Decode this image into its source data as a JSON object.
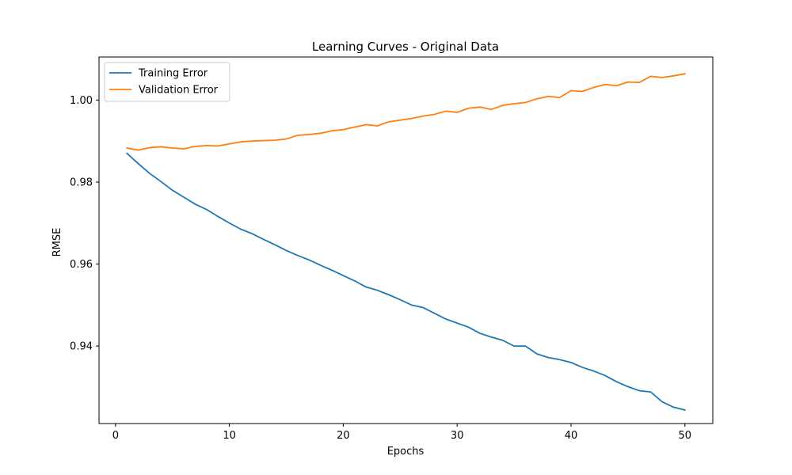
{
  "chart_data": {
    "type": "line",
    "title": "Learning Curves - Original Data",
    "xlabel": "Epochs",
    "ylabel": "RMSE",
    "xlim": [
      -1.45,
      52.45
    ],
    "ylim": [
      0.9211,
      1.0105
    ],
    "xticks": [
      0,
      10,
      20,
      30,
      40,
      50
    ],
    "yticks": [
      0.94,
      0.96,
      0.98,
      1.0
    ],
    "xtick_labels": [
      "0",
      "10",
      "20",
      "30",
      "40",
      "50"
    ],
    "ytick_labels": [
      "0.94",
      "0.96",
      "0.98",
      "1.00"
    ],
    "grid": false,
    "legend_position": "top-left",
    "x": [
      1,
      2,
      3,
      4,
      5,
      6,
      7,
      8,
      9,
      10,
      11,
      12,
      13,
      14,
      15,
      16,
      17,
      18,
      19,
      20,
      21,
      22,
      23,
      24,
      25,
      26,
      27,
      28,
      29,
      30,
      31,
      32,
      33,
      34,
      35,
      36,
      37,
      38,
      39,
      40,
      41,
      42,
      43,
      44,
      45,
      46,
      47,
      48,
      49,
      50
    ],
    "series": [
      {
        "name": "Training Error",
        "color": "#1f77b4",
        "values": [
          0.987,
          0.9845,
          0.9821,
          0.9801,
          0.978,
          0.9763,
          0.9746,
          0.9733,
          0.9716,
          0.97,
          0.9685,
          0.9674,
          0.966,
          0.9647,
          0.9633,
          0.9621,
          0.961,
          0.9597,
          0.9585,
          0.9572,
          0.9559,
          0.9544,
          0.9536,
          0.9525,
          0.9513,
          0.95,
          0.9494,
          0.948,
          0.9466,
          0.9456,
          0.9446,
          0.9431,
          0.9422,
          0.9414,
          0.94,
          0.94,
          0.9381,
          0.9372,
          0.9367,
          0.936,
          0.9348,
          0.9339,
          0.9328,
          0.9313,
          0.9301,
          0.9291,
          0.9288,
          0.9264,
          0.9251,
          0.9244
        ]
      },
      {
        "name": "Validation Error",
        "color": "#ff7f0e",
        "values": [
          0.9883,
          0.9878,
          0.9884,
          0.9886,
          0.9883,
          0.9881,
          0.9887,
          0.9889,
          0.9888,
          0.9893,
          0.9898,
          0.99,
          0.9901,
          0.9902,
          0.9905,
          0.9914,
          0.9916,
          0.9919,
          0.9925,
          0.9928,
          0.9934,
          0.994,
          0.9937,
          0.9947,
          0.9951,
          0.9955,
          0.9961,
          0.9965,
          0.9973,
          0.997,
          0.998,
          0.9983,
          0.9977,
          0.9987,
          0.9991,
          0.9994,
          1.0003,
          1.0009,
          1.0006,
          1.0023,
          1.0021,
          1.0031,
          1.0038,
          1.0035,
          1.0044,
          1.0043,
          1.0058,
          1.0055,
          1.0059,
          1.0064
        ]
      }
    ]
  }
}
